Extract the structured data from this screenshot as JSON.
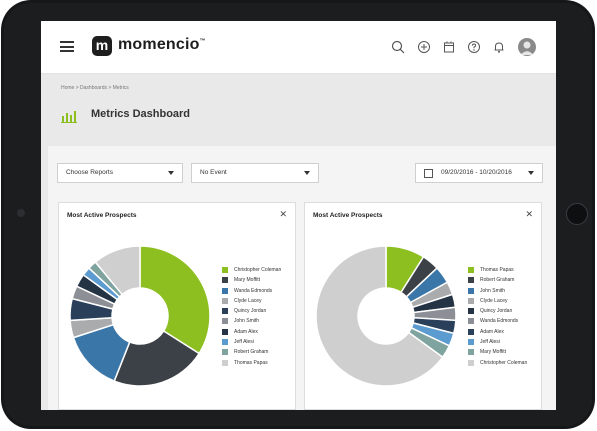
{
  "app": {
    "logo_letter": "m",
    "name": "momencio",
    "trademark": "™"
  },
  "topbar": {
    "icons": [
      "search-icon",
      "add-icon",
      "calendar-icon",
      "help-icon",
      "bell-icon"
    ]
  },
  "breadcrumb": "Home > Dashboards > Metrics",
  "page": {
    "title": "Metrics Dashboard"
  },
  "filters": {
    "reports": "Choose Reports",
    "event": "No Event",
    "date_range": "09/20/2016 - 10/20/2016"
  },
  "cards": [
    {
      "title": "Most Active Prospects",
      "chart_data": {
        "type": "pie",
        "labels": [
          "Christopher Coleman",
          "Mary Moffitt",
          "Wanda Edmonds",
          "Clyde Lacey",
          "Quincy Jordan",
          "John Smith",
          "Adam Alex",
          "Jeff Alesi",
          "Robert Graham",
          "Thomas Papas"
        ],
        "values": [
          34,
          22,
          14,
          4,
          5,
          3,
          3,
          2,
          2,
          11
        ],
        "colors": [
          "#8cbf1f",
          "#3c4147",
          "#3b76a8",
          "#a9abad",
          "#2a3f5a",
          "#8c9096",
          "#253445",
          "#5b9bd0",
          "#7fa39e",
          "#cfcfcf"
        ]
      }
    },
    {
      "title": "Most Active Prospects",
      "chart_data": {
        "type": "pie",
        "labels": [
          "Thomas Papas",
          "Robert Graham",
          "John Smith",
          "Clyde Lacey",
          "Quincy Jordan",
          "Wanda Edmonds",
          "Adam Alex",
          "Jeff Alesi",
          "Mary Moffitt",
          "Christopher Coleman"
        ],
        "values": [
          9,
          4,
          4,
          3,
          3,
          3,
          3,
          3,
          3,
          65
        ],
        "colors": [
          "#8cbf1f",
          "#3c4147",
          "#3b76a8",
          "#a9abad",
          "#253445",
          "#8c9096",
          "#2a3f5a",
          "#5b9bd0",
          "#7fa39e",
          "#cfcfcf"
        ]
      }
    }
  ]
}
